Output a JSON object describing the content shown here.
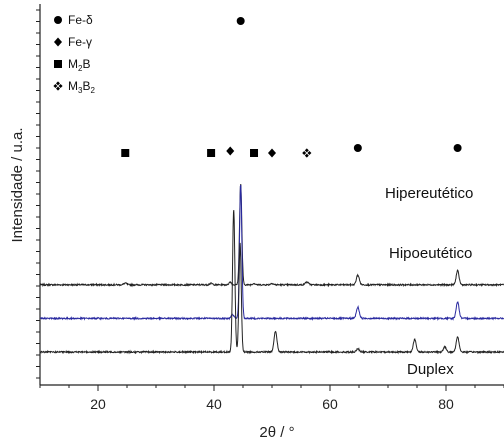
{
  "chart_data": {
    "type": "line",
    "xlabel": "2θ / °",
    "ylabel": "Intensidade / u.a.",
    "xlim": [
      10,
      90
    ],
    "x_ticks": [
      20,
      40,
      60,
      80
    ],
    "y_ticks_shown": false,
    "colors": {
      "Hipereutético": "#222222",
      "Hipoeutético": "#2a2aa0",
      "Duplex": "#222222"
    },
    "legend": {
      "placement": "top-left",
      "items": [
        {
          "symbol": "circle",
          "label": "Fe-δ"
        },
        {
          "symbol": "diamond",
          "label": "Fe-γ"
        },
        {
          "symbol": "square",
          "label": "M",
          "sub": "2",
          "after": "B"
        },
        {
          "symbol": "star-diamond",
          "label": "M",
          "sub": "3",
          "after": "B",
          "sub2": "2"
        }
      ]
    },
    "series": [
      {
        "name": "Hipereutético",
        "baseline": 2.4,
        "peaks": [
          {
            "x": 24.7,
            "h": 0.06,
            "w": 0.35
          },
          {
            "x": 39.5,
            "h": 0.05,
            "w": 0.35
          },
          {
            "x": 42.8,
            "h": 0.1,
            "w": 0.3
          },
          {
            "x": 44.6,
            "h": 3.6,
            "w": 0.28
          },
          {
            "x": 46.9,
            "h": 0.05,
            "w": 0.35
          },
          {
            "x": 50.0,
            "h": 0.05,
            "w": 0.35
          },
          {
            "x": 56.0,
            "h": 0.1,
            "w": 0.4
          },
          {
            "x": 64.8,
            "h": 0.35,
            "w": 0.35
          },
          {
            "x": 82.0,
            "h": 0.5,
            "w": 0.35
          }
        ],
        "markers": [
          {
            "x": 24.7,
            "symbol": "square"
          },
          {
            "x": 39.5,
            "symbol": "square"
          },
          {
            "x": 42.8,
            "symbol": "diamond"
          },
          {
            "x": 44.6,
            "symbol": "circle"
          },
          {
            "x": 46.9,
            "symbol": "square"
          },
          {
            "x": 50.0,
            "symbol": "diamond"
          },
          {
            "x": 56.0,
            "symbol": "star-diamond"
          },
          {
            "x": 64.8,
            "symbol": "circle"
          },
          {
            "x": 82.0,
            "symbol": "circle"
          }
        ],
        "label": "Hipereutético"
      },
      {
        "name": "Hipoeutético",
        "baseline": 1.2,
        "peaks": [
          {
            "x": 43.2,
            "h": 0.15,
            "w": 0.3
          },
          {
            "x": 44.6,
            "h": 4.8,
            "w": 0.28
          },
          {
            "x": 64.8,
            "h": 0.4,
            "w": 0.35
          },
          {
            "x": 82.0,
            "h": 0.6,
            "w": 0.35
          }
        ],
        "label": "Hipoeutético"
      },
      {
        "name": "Duplex",
        "baseline": 0.0,
        "peaks": [
          {
            "x": 43.4,
            "h": 5.1,
            "w": 0.28
          },
          {
            "x": 44.5,
            "h": 3.9,
            "w": 0.28
          },
          {
            "x": 50.6,
            "h": 0.75,
            "w": 0.35
          },
          {
            "x": 64.8,
            "h": 0.12,
            "w": 0.35
          },
          {
            "x": 74.6,
            "h": 0.45,
            "w": 0.35
          },
          {
            "x": 79.8,
            "h": 0.18,
            "w": 0.35
          },
          {
            "x": 82.0,
            "h": 0.55,
            "w": 0.35
          }
        ],
        "label": "Duplex"
      }
    ]
  }
}
